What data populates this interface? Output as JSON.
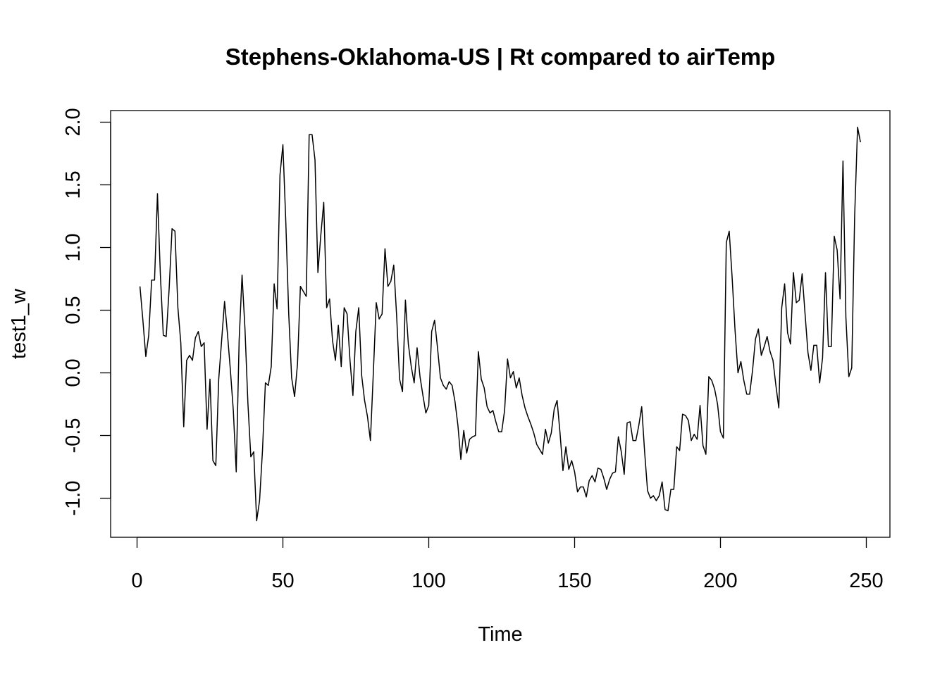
{
  "chart_data": {
    "type": "line",
    "title": "Stephens-Oklahoma-US | Rt compared to airTemp",
    "xlabel": "Time",
    "ylabel": "test1_w",
    "xlim": [
      0,
      250
    ],
    "ylim": [
      -1.2,
      2.0
    ],
    "x_ticks": [
      0,
      50,
      100,
      150,
      200,
      250
    ],
    "x_tick_labels": [
      "0",
      "50",
      "100",
      "150",
      "200",
      "250"
    ],
    "y_ticks": [
      -1.0,
      -0.5,
      0.0,
      0.5,
      1.0,
      1.5,
      2.0
    ],
    "y_tick_labels": [
      "-1.0",
      "-0.5",
      "0.0",
      "0.5",
      "1.0",
      "1.5",
      "2.0"
    ],
    "grid": false,
    "line_color": "#000000",
    "series": [
      {
        "x_start": 1,
        "x_step": 1,
        "values": [
          0.69,
          0.42,
          0.13,
          0.3,
          0.74,
          0.74,
          1.43,
          0.78,
          0.3,
          0.29,
          0.67,
          1.15,
          1.13,
          0.52,
          0.24,
          -0.43,
          0.1,
          0.14,
          0.1,
          0.28,
          0.33,
          0.21,
          0.24,
          -0.45,
          -0.05,
          -0.7,
          -0.74,
          -0.05,
          0.26,
          0.57,
          0.31,
          0.02,
          -0.3,
          -0.79,
          0.26,
          0.78,
          0.35,
          -0.24,
          -0.67,
          -0.63,
          -1.18,
          -1.02,
          -0.62,
          -0.08,
          -0.1,
          0.05,
          0.71,
          0.51,
          1.58,
          1.82,
          1.2,
          0.47,
          -0.04,
          -0.19,
          0.07,
          0.69,
          0.65,
          0.61,
          1.9,
          1.9,
          1.7,
          0.8,
          1.1,
          1.36,
          0.52,
          0.59,
          0.26,
          0.1,
          0.38,
          0.05,
          0.52,
          0.47,
          0.1,
          -0.18,
          0.33,
          0.52,
          -0.02,
          -0.22,
          -0.35,
          -0.54,
          0.0,
          0.56,
          0.43,
          0.47,
          0.99,
          0.69,
          0.73,
          0.86,
          0.45,
          -0.05,
          -0.15,
          0.58,
          0.23,
          0.05,
          -0.08,
          0.2,
          -0.03,
          -0.18,
          -0.32,
          -0.26,
          0.33,
          0.42,
          0.2,
          -0.04,
          -0.1,
          -0.13,
          -0.07,
          -0.1,
          -0.23,
          -0.42,
          -0.69,
          -0.46,
          -0.64,
          -0.53,
          -0.51,
          -0.5,
          0.17,
          -0.05,
          -0.12,
          -0.27,
          -0.32,
          -0.3,
          -0.39,
          -0.47,
          -0.47,
          -0.3,
          0.11,
          -0.04,
          0.01,
          -0.12,
          -0.04,
          -0.18,
          -0.28,
          -0.35,
          -0.41,
          -0.48,
          -0.57,
          -0.61,
          -0.65,
          -0.45,
          -0.56,
          -0.48,
          -0.29,
          -0.22,
          -0.48,
          -0.78,
          -0.59,
          -0.77,
          -0.7,
          -0.79,
          -0.95,
          -0.91,
          -0.91,
          -0.99,
          -0.86,
          -0.82,
          -0.87,
          -0.76,
          -0.77,
          -0.84,
          -0.93,
          -0.85,
          -0.8,
          -0.79,
          -0.51,
          -0.63,
          -0.81,
          -0.4,
          -0.39,
          -0.54,
          -0.54,
          -0.42,
          -0.27,
          -0.63,
          -0.94,
          -1.0,
          -0.98,
          -1.02,
          -0.98,
          -0.87,
          -1.09,
          -1.1,
          -0.93,
          -0.93,
          -0.59,
          -0.62,
          -0.33,
          -0.34,
          -0.38,
          -0.54,
          -0.49,
          -0.53,
          -0.26,
          -0.58,
          -0.65,
          -0.03,
          -0.06,
          -0.13,
          -0.25,
          -0.47,
          -0.52,
          1.04,
          1.13,
          0.76,
          0.34,
          0.0,
          0.09,
          -0.06,
          -0.17,
          -0.17,
          0.02,
          0.27,
          0.35,
          0.14,
          0.21,
          0.29,
          0.17,
          0.1,
          -0.1,
          -0.28,
          0.52,
          0.71,
          0.32,
          0.23,
          0.8,
          0.56,
          0.58,
          0.79,
          0.47,
          0.16,
          0.02,
          0.22,
          0.22,
          -0.08,
          0.12,
          0.8,
          0.21,
          0.21,
          1.09,
          0.98,
          0.59,
          1.69,
          0.44,
          -0.03,
          0.04,
          1.25,
          1.96,
          1.84
        ]
      }
    ]
  }
}
